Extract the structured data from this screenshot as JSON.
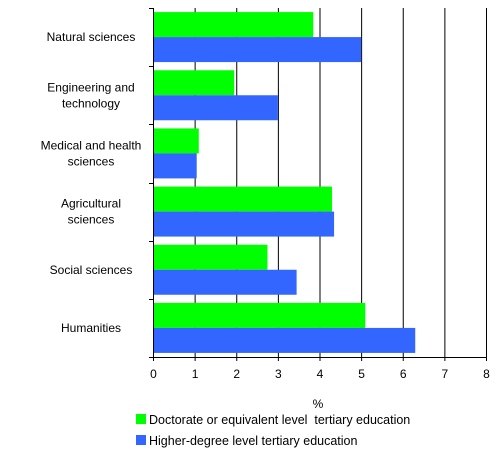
{
  "chart_data": {
    "type": "bar",
    "orientation": "horizontal",
    "categories": [
      "Natural sciences",
      "Engineering and technology",
      "Medical and health sciences",
      "Agricultural sciences",
      "Social sciences",
      "Humanities"
    ],
    "category_label_lines": [
      [
        "Natural sciences"
      ],
      [
        "Engineering and",
        "technology"
      ],
      [
        "Medical and health",
        "sciences"
      ],
      [
        "Agricultural",
        "sciences"
      ],
      [
        "Social sciences"
      ],
      [
        "Humanities"
      ]
    ],
    "series": [
      {
        "name": "Doctorate or equivalent level  tertiary education",
        "color": "#00ff00",
        "values": [
          3.85,
          1.95,
          1.1,
          4.3,
          2.75,
          5.1
        ]
      },
      {
        "name": "Higher-degree level tertiary education",
        "color": "#3366ff",
        "values": [
          5.0,
          3.0,
          1.05,
          4.35,
          3.45,
          6.3
        ]
      }
    ],
    "xlabel": "%",
    "ylabel": "",
    "xlim": [
      0,
      8
    ],
    "x_ticks": [
      "0",
      "1",
      "2",
      "3",
      "4",
      "5",
      "6",
      "7",
      "8"
    ],
    "grid": "vertical",
    "legend_position": "bottom"
  }
}
